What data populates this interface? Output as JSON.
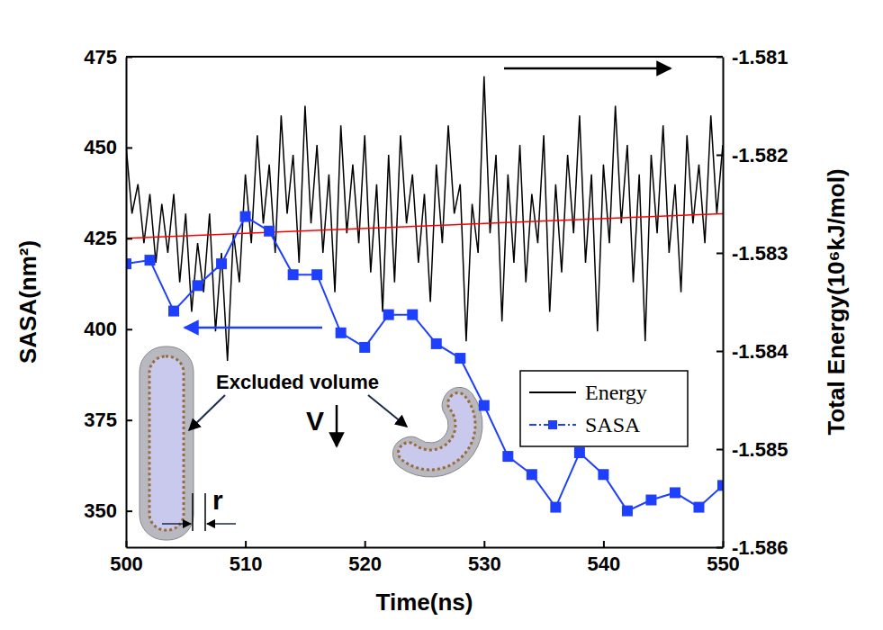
{
  "chart_data": {
    "type": "line",
    "xlabel": "Time(ns)",
    "ylabel": "SASA(nm²)",
    "y2label": "Total Energy(10⁶kJ/mol)",
    "xlim": [
      500,
      550
    ],
    "xticks": [
      500,
      510,
      520,
      530,
      540,
      550
    ],
    "ylim": [
      340,
      475
    ],
    "yticks": [
      350,
      375,
      400,
      425,
      450,
      475
    ],
    "y2lim": [
      -1.586,
      -1.581
    ],
    "y2ticks": [
      -1.586,
      -1.585,
      -1.584,
      -1.583,
      -1.582,
      -1.581
    ],
    "grid": false,
    "legend": "right",
    "annotations": [
      {
        "text": "Excluded volume"
      },
      {
        "text": "r"
      },
      {
        "text": "V"
      }
    ],
    "series": [
      {
        "name": "Energy",
        "color": "#000000",
        "axis": "y2",
        "marker": "none",
        "line_style": "solid",
        "x": [
          500,
          500.5,
          501,
          501.5,
          502,
          502.5,
          503,
          503.5,
          504,
          504.5,
          505,
          505.5,
          506,
          506.5,
          507,
          507.5,
          508,
          508.5,
          509,
          509.5,
          510,
          510.5,
          511,
          511.5,
          512,
          512.5,
          513,
          513.5,
          514,
          514.5,
          515,
          515.5,
          516,
          516.5,
          517,
          517.5,
          518,
          518.5,
          519,
          519.5,
          520,
          520.5,
          521,
          521.5,
          522,
          522.5,
          523,
          523.5,
          524,
          524.5,
          525,
          525.5,
          526,
          526.5,
          527,
          527.5,
          528,
          528.5,
          529,
          529.5,
          530,
          530.5,
          531,
          531.5,
          532,
          532.5,
          533,
          533.5,
          534,
          534.5,
          535,
          535.5,
          536,
          536.5,
          537,
          537.5,
          538,
          538.5,
          539,
          539.5,
          540,
          540.5,
          541,
          541.5,
          542,
          542.5,
          543,
          543.5,
          544,
          544.5,
          545,
          545.5,
          546,
          546.5,
          547,
          547.5,
          548,
          548.5,
          549,
          549.5,
          550
        ],
        "values": [
          -1.5819,
          -1.5826,
          -1.5823,
          -1.5829,
          -1.5824,
          -1.5831,
          -1.5825,
          -1.583,
          -1.5824,
          -1.5833,
          -1.5826,
          -1.5836,
          -1.5829,
          -1.5834,
          -1.5826,
          -1.5838,
          -1.583,
          -1.5841,
          -1.5828,
          -1.5833,
          -1.5822,
          -1.5829,
          -1.5818,
          -1.5827,
          -1.5821,
          -1.583,
          -1.5816,
          -1.5826,
          -1.582,
          -1.5831,
          -1.5815,
          -1.5827,
          -1.5819,
          -1.583,
          -1.5822,
          -1.5834,
          -1.5817,
          -1.5828,
          -1.5821,
          -1.5829,
          -1.5818,
          -1.5832,
          -1.5823,
          -1.5836,
          -1.582,
          -1.5833,
          -1.5818,
          -1.5827,
          -1.5822,
          -1.5831,
          -1.5824,
          -1.5835,
          -1.5821,
          -1.5829,
          -1.5817,
          -1.5826,
          -1.5823,
          -1.5839,
          -1.5825,
          -1.583,
          -1.5812,
          -1.5828,
          -1.582,
          -1.5837,
          -1.5822,
          -1.5831,
          -1.5819,
          -1.5833,
          -1.5824,
          -1.5829,
          -1.5818,
          -1.5836,
          -1.5823,
          -1.5832,
          -1.582,
          -1.5828,
          -1.5816,
          -1.5831,
          -1.5822,
          -1.5838,
          -1.5821,
          -1.5829,
          -1.5815,
          -1.5827,
          -1.5819,
          -1.5833,
          -1.5822,
          -1.5839,
          -1.582,
          -1.5828,
          -1.5817,
          -1.583,
          -1.5823,
          -1.5834,
          -1.5818,
          -1.5827,
          -1.5821,
          -1.5829,
          -1.5816,
          -1.5826,
          -1.5819
        ]
      },
      {
        "name": "SASA",
        "color": "#1f3fff",
        "axis": "y",
        "marker": "square",
        "line_style": "solid",
        "x": [
          500,
          502,
          504,
          506,
          508,
          510,
          512,
          514,
          516,
          518,
          520,
          522,
          524,
          526,
          528,
          530,
          532,
          534,
          536,
          538,
          540,
          542,
          544,
          546,
          548,
          550
        ],
        "values": [
          418,
          419,
          405,
          412,
          418,
          431,
          427,
          415,
          415,
          399,
          395,
          404,
          404,
          396,
          392,
          379,
          365,
          360,
          351,
          366,
          360,
          350,
          353,
          355,
          351,
          357
        ]
      },
      {
        "color": "#ff0000",
        "axis": "y2",
        "marker": "none",
        "line_style": "solid",
        "x": [
          500,
          550
        ],
        "values": [
          -1.58285,
          -1.5826
        ]
      }
    ]
  }
}
